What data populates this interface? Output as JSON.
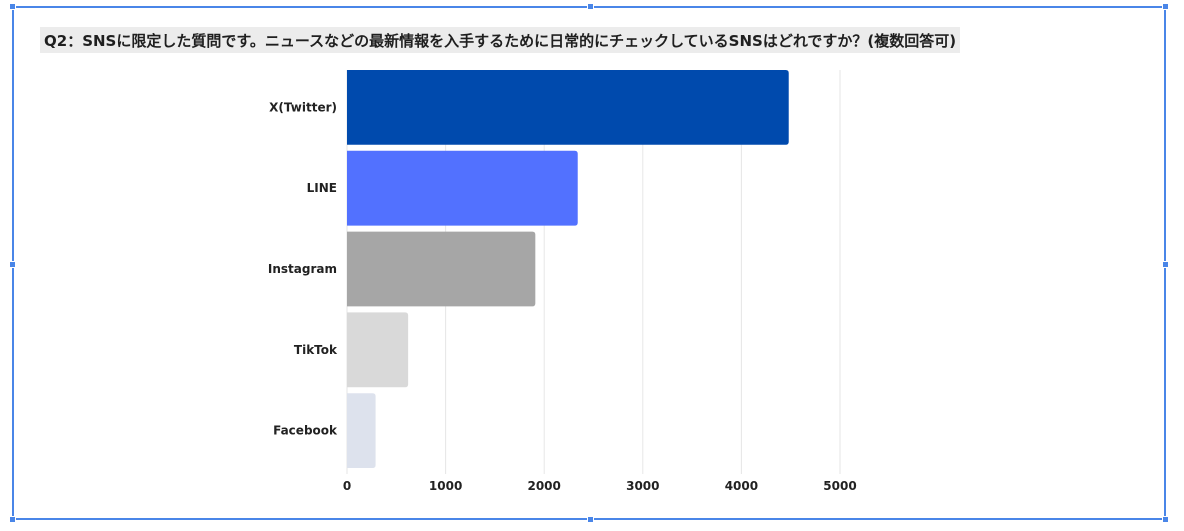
{
  "chart_data": {
    "type": "bar",
    "orientation": "horizontal",
    "title": "Q2：SNSに限定した質問です。ニュースなどの最新情報を入手するために日常的にチェックしているSNSはどれですか？(複数回答可)",
    "categories": [
      "X(Twitter)",
      "LINE",
      "Instagram",
      "TikTok",
      "Facebook"
    ],
    "values": [
      4480,
      2340,
      1910,
      620,
      290
    ],
    "bar_colors": [
      "#004aad",
      "#5271ff",
      "#a6a6a6",
      "#d9d9d9",
      "#dde2ed"
    ],
    "xlim": [
      0,
      5000
    ],
    "x_ticks": [
      "0",
      "1000",
      "2000",
      "3000",
      "4000",
      "5000"
    ],
    "grid": true,
    "legend": "none"
  }
}
